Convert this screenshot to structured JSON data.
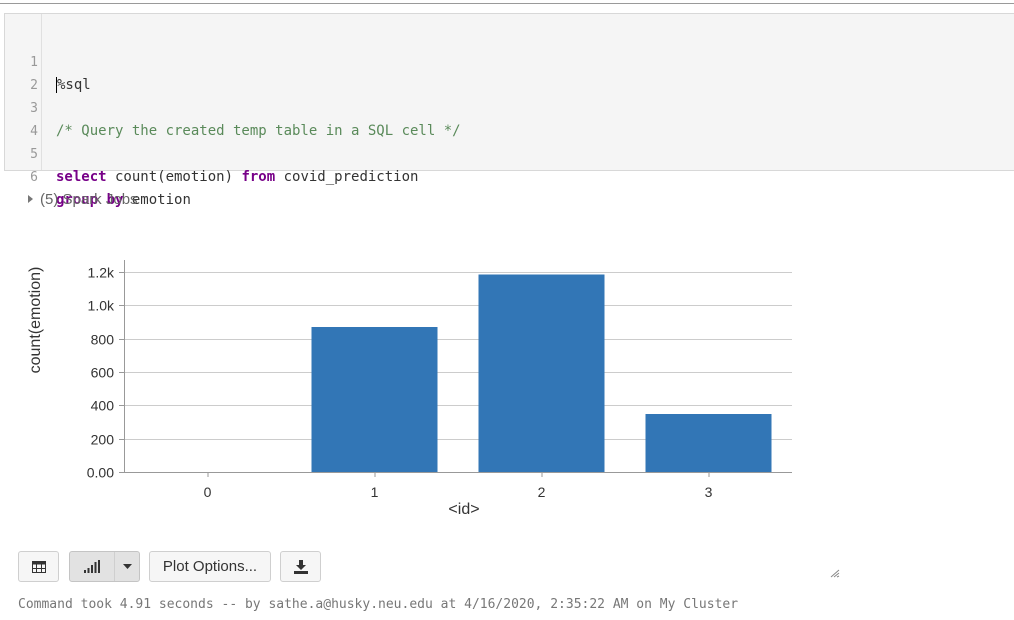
{
  "cell": {
    "lines": [
      {
        "num": "1",
        "text": "%sql"
      },
      {
        "num": "2",
        "text": ""
      },
      {
        "num": "3",
        "comment": "/* Query the created temp table in a SQL cell */"
      },
      {
        "num": "4",
        "text": ""
      },
      {
        "num": "5",
        "kw1": "select",
        "mid": " count(emotion) ",
        "kw2": "from",
        "rest": " covid_prediction"
      },
      {
        "num": "6",
        "kw1": "group by",
        "rest": " emotion"
      }
    ]
  },
  "spark_jobs": {
    "label": "(5) Spark Jobs"
  },
  "chart_data": {
    "type": "bar",
    "categories": [
      "0",
      "1",
      "2",
      "3"
    ],
    "values": [
      0,
      870,
      1185,
      348
    ],
    "xlabel": "<id>",
    "ylabel": "count(emotion)",
    "ylim": [
      0,
      1300
    ],
    "yticks": [
      {
        "value": 0,
        "label": "0.00"
      },
      {
        "value": 200,
        "label": "200"
      },
      {
        "value": 400,
        "label": "400"
      },
      {
        "value": 600,
        "label": "600"
      },
      {
        "value": 800,
        "label": "800"
      },
      {
        "value": 1000,
        "label": "1.0k"
      },
      {
        "value": 1200,
        "label": "1.2k"
      }
    ],
    "grid": true,
    "color": "#3276b6"
  },
  "toolbar": {
    "table_icon": "table-icon",
    "bar_chart_icon": "bar-chart-icon",
    "caret_icon": "caret-down-icon",
    "plot_options_label": "Plot Options...",
    "download_icon": "download-icon"
  },
  "footer": {
    "text": "Command took 4.91 seconds -- by sathe.a@husky.neu.edu at 4/16/2020, 2:35:22 AM on My Cluster"
  }
}
